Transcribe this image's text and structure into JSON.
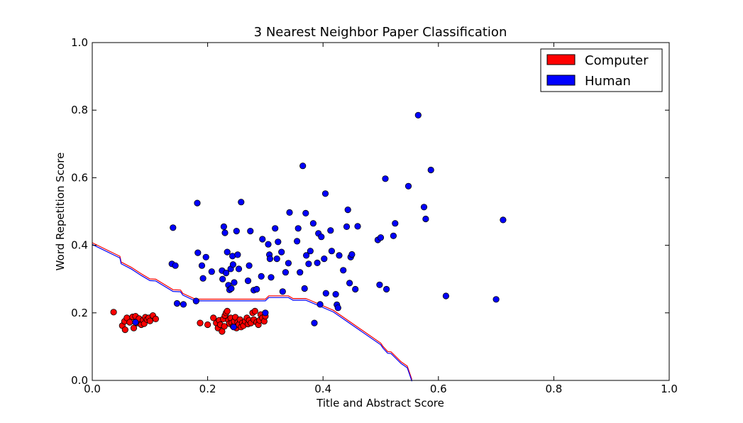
{
  "chart_data": {
    "type": "scatter",
    "title": "3 Nearest Neighbor Paper Classification",
    "xlabel": "Title and Abstract Score",
    "ylabel": "Word Repetition Score",
    "xlim": [
      0.0,
      1.0
    ],
    "ylim": [
      0.0,
      1.0
    ],
    "xticks": [
      "0.0",
      "0.2",
      "0.4",
      "0.6",
      "0.8",
      "1.0"
    ],
    "yticks": [
      "0.0",
      "0.2",
      "0.4",
      "0.6",
      "0.8",
      "1.0"
    ],
    "grid": false,
    "legend_position": "top-right",
    "legend": [
      {
        "label": "Computer",
        "color": "#ff0000"
      },
      {
        "label": "Human",
        "color": "#0000ff"
      }
    ],
    "series": [
      {
        "name": "Computer",
        "color": "#ff0000",
        "points": [
          [
            0.037,
            0.202
          ],
          [
            0.052,
            0.162
          ],
          [
            0.056,
            0.175
          ],
          [
            0.057,
            0.15
          ],
          [
            0.06,
            0.185
          ],
          [
            0.065,
            0.172
          ],
          [
            0.07,
            0.188
          ],
          [
            0.072,
            0.155
          ],
          [
            0.075,
            0.19
          ],
          [
            0.078,
            0.17
          ],
          [
            0.081,
            0.183
          ],
          [
            0.085,
            0.165
          ],
          [
            0.088,
            0.178
          ],
          [
            0.09,
            0.168
          ],
          [
            0.092,
            0.187
          ],
          [
            0.095,
            0.18
          ],
          [
            0.098,
            0.185
          ],
          [
            0.1,
            0.176
          ],
          [
            0.105,
            0.192
          ],
          [
            0.11,
            0.182
          ],
          [
            0.187,
            0.17
          ],
          [
            0.2,
            0.165
          ],
          [
            0.21,
            0.185
          ],
          [
            0.215,
            0.17
          ],
          [
            0.218,
            0.155
          ],
          [
            0.22,
            0.178
          ],
          [
            0.222,
            0.165
          ],
          [
            0.225,
            0.145
          ],
          [
            0.227,
            0.182
          ],
          [
            0.229,
            0.16
          ],
          [
            0.23,
            0.192
          ],
          [
            0.232,
            0.2
          ],
          [
            0.234,
            0.205
          ],
          [
            0.236,
            0.178
          ],
          [
            0.238,
            0.168
          ],
          [
            0.24,
            0.185
          ],
          [
            0.242,
            0.17
          ],
          [
            0.244,
            0.16
          ],
          [
            0.246,
            0.175
          ],
          [
            0.248,
            0.187
          ],
          [
            0.25,
            0.155
          ],
          [
            0.252,
            0.172
          ],
          [
            0.254,
            0.165
          ],
          [
            0.256,
            0.18
          ],
          [
            0.258,
            0.158
          ],
          [
            0.26,
            0.17
          ],
          [
            0.262,
            0.162
          ],
          [
            0.265,
            0.175
          ],
          [
            0.268,
            0.185
          ],
          [
            0.27,
            0.167
          ],
          [
            0.272,
            0.178
          ],
          [
            0.275,
            0.17
          ],
          [
            0.278,
            0.2
          ],
          [
            0.28,
            0.18
          ],
          [
            0.282,
            0.205
          ],
          [
            0.285,
            0.172
          ],
          [
            0.288,
            0.165
          ],
          [
            0.29,
            0.178
          ],
          [
            0.292,
            0.195
          ],
          [
            0.295,
            0.185
          ],
          [
            0.298,
            0.175
          ],
          [
            0.3,
            0.19
          ]
        ]
      },
      {
        "name": "Human",
        "color": "#0000ff",
        "points": [
          [
            0.075,
            0.172
          ],
          [
            0.138,
            0.345
          ],
          [
            0.14,
            0.452
          ],
          [
            0.144,
            0.34
          ],
          [
            0.147,
            0.228
          ],
          [
            0.158,
            0.225
          ],
          [
            0.18,
            0.235
          ],
          [
            0.182,
            0.525
          ],
          [
            0.183,
            0.378
          ],
          [
            0.19,
            0.34
          ],
          [
            0.192,
            0.302
          ],
          [
            0.197,
            0.365
          ],
          [
            0.207,
            0.322
          ],
          [
            0.225,
            0.325
          ],
          [
            0.226,
            0.3
          ],
          [
            0.228,
            0.455
          ],
          [
            0.23,
            0.437
          ],
          [
            0.232,
            0.318
          ],
          [
            0.234,
            0.38
          ],
          [
            0.236,
            0.282
          ],
          [
            0.238,
            0.268
          ],
          [
            0.24,
            0.33
          ],
          [
            0.241,
            0.272
          ],
          [
            0.243,
            0.368
          ],
          [
            0.244,
            0.343
          ],
          [
            0.245,
            0.158
          ],
          [
            0.246,
            0.29
          ],
          [
            0.25,
            0.442
          ],
          [
            0.252,
            0.372
          ],
          [
            0.254,
            0.33
          ],
          [
            0.258,
            0.528
          ],
          [
            0.27,
            0.295
          ],
          [
            0.272,
            0.34
          ],
          [
            0.274,
            0.442
          ],
          [
            0.28,
            0.267
          ],
          [
            0.285,
            0.27
          ],
          [
            0.293,
            0.308
          ],
          [
            0.295,
            0.418
          ],
          [
            0.3,
            0.2
          ],
          [
            0.305,
            0.403
          ],
          [
            0.307,
            0.372
          ],
          [
            0.308,
            0.36
          ],
          [
            0.31,
            0.305
          ],
          [
            0.317,
            0.45
          ],
          [
            0.32,
            0.36
          ],
          [
            0.322,
            0.41
          ],
          [
            0.328,
            0.38
          ],
          [
            0.33,
            0.263
          ],
          [
            0.335,
            0.32
          ],
          [
            0.34,
            0.347
          ],
          [
            0.342,
            0.497
          ],
          [
            0.355,
            0.412
          ],
          [
            0.357,
            0.45
          ],
          [
            0.36,
            0.32
          ],
          [
            0.365,
            0.635
          ],
          [
            0.368,
            0.272
          ],
          [
            0.37,
            0.495
          ],
          [
            0.371,
            0.37
          ],
          [
            0.375,
            0.345
          ],
          [
            0.378,
            0.383
          ],
          [
            0.383,
            0.465
          ],
          [
            0.385,
            0.17
          ],
          [
            0.39,
            0.348
          ],
          [
            0.392,
            0.435
          ],
          [
            0.395,
            0.225
          ],
          [
            0.397,
            0.425
          ],
          [
            0.402,
            0.36
          ],
          [
            0.404,
            0.553
          ],
          [
            0.405,
            0.258
          ],
          [
            0.413,
            0.444
          ],
          [
            0.415,
            0.383
          ],
          [
            0.422,
            0.255
          ],
          [
            0.424,
            0.224
          ],
          [
            0.426,
            0.215
          ],
          [
            0.428,
            0.37
          ],
          [
            0.435,
            0.326
          ],
          [
            0.441,
            0.455
          ],
          [
            0.443,
            0.505
          ],
          [
            0.446,
            0.288
          ],
          [
            0.448,
            0.365
          ],
          [
            0.45,
            0.373
          ],
          [
            0.456,
            0.27
          ],
          [
            0.46,
            0.456
          ],
          [
            0.495,
            0.416
          ],
          [
            0.498,
            0.283
          ],
          [
            0.5,
            0.423
          ],
          [
            0.508,
            0.597
          ],
          [
            0.51,
            0.27
          ],
          [
            0.522,
            0.428
          ],
          [
            0.525,
            0.465
          ],
          [
            0.548,
            0.575
          ],
          [
            0.565,
            0.785
          ],
          [
            0.575,
            0.513
          ],
          [
            0.578,
            0.478
          ],
          [
            0.587,
            0.623
          ],
          [
            0.613,
            0.25
          ],
          [
            0.7,
            0.24
          ],
          [
            0.712,
            0.475
          ]
        ]
      }
    ],
    "decision_boundary": [
      [
        0.0,
        0.405
      ],
      [
        0.048,
        0.365
      ],
      [
        0.05,
        0.348
      ],
      [
        0.068,
        0.332
      ],
      [
        0.085,
        0.313
      ],
      [
        0.1,
        0.298
      ],
      [
        0.11,
        0.297
      ],
      [
        0.14,
        0.266
      ],
      [
        0.153,
        0.265
      ],
      [
        0.157,
        0.255
      ],
      [
        0.176,
        0.24
      ],
      [
        0.183,
        0.238
      ],
      [
        0.3,
        0.238
      ],
      [
        0.306,
        0.248
      ],
      [
        0.34,
        0.248
      ],
      [
        0.348,
        0.24
      ],
      [
        0.37,
        0.24
      ],
      [
        0.376,
        0.236
      ],
      [
        0.418,
        0.205
      ],
      [
        0.5,
        0.108
      ],
      [
        0.504,
        0.098
      ],
      [
        0.512,
        0.083
      ],
      [
        0.518,
        0.082
      ],
      [
        0.535,
        0.053
      ],
      [
        0.546,
        0.04
      ],
      [
        0.55,
        0.02
      ],
      [
        0.554,
        0.0
      ]
    ]
  }
}
